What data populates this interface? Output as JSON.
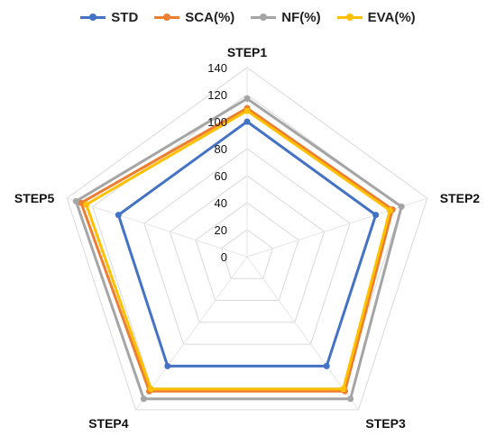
{
  "chart_data": {
    "type": "radar",
    "categories": [
      "STEP1",
      "STEP2",
      "STEP3",
      "STEP4",
      "STEP5"
    ],
    "rlim": [
      0,
      140
    ],
    "ticks": [
      "0",
      "20",
      "40",
      "60",
      "80",
      "100",
      "120",
      "140"
    ],
    "tick_values": [
      0,
      20,
      40,
      60,
      80,
      100,
      120,
      140
    ],
    "grid": true,
    "legend_position": "top",
    "series": [
      {
        "name": "STD",
        "color": "#4472C4",
        "values": [
          100,
          100,
          100,
          100,
          100
        ]
      },
      {
        "name": "SCA(%)",
        "color": "#ED7D31",
        "values": [
          110,
          113,
          123,
          123,
          129
        ]
      },
      {
        "name": "NF(%)",
        "color": "#A5A5A5",
        "values": [
          117,
          120,
          130,
          130,
          133
        ]
      },
      {
        "name": "EVA(%)",
        "color": "#FFC000",
        "values": [
          108,
          111,
          121,
          121,
          125
        ]
      }
    ]
  }
}
